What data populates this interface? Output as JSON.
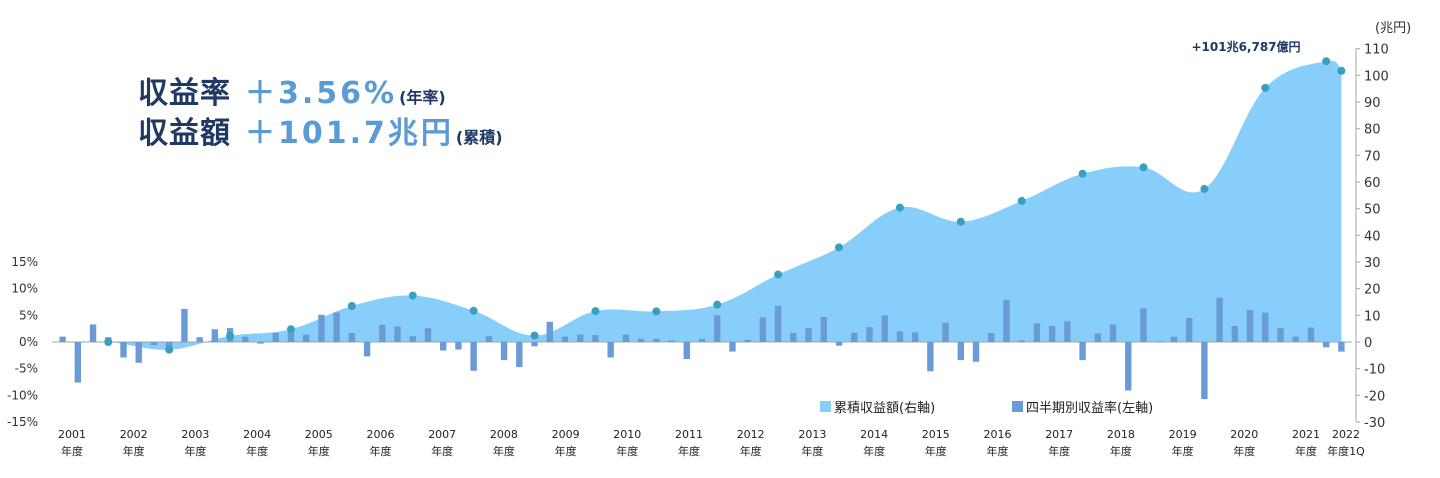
{
  "headline": {
    "rate_label": "収益率",
    "rate_value": "＋3.56%",
    "rate_note": "(年率)",
    "amount_label": "収益額",
    "amount_value": "＋101.7兆円",
    "amount_note": "(累積)"
  },
  "chart_data": {
    "type": "bar+area",
    "left_axis": {
      "ticks": [
        "15%",
        "10%",
        "5%",
        "0%",
        "-5%",
        "-10%",
        "-15%"
      ],
      "ylim": [
        -15,
        15
      ]
    },
    "right_axis": {
      "unit_label": "(兆円)",
      "ticks": [
        "110",
        "100",
        "90",
        "80",
        "70",
        "60",
        "50",
        "40",
        "30",
        "20",
        "10",
        "0",
        "-10",
        "-20",
        "-30"
      ],
      "ylim": [
        -30,
        110
      ]
    },
    "year_labels": [
      "2001",
      "2002",
      "2003",
      "2004",
      "2005",
      "2006",
      "2007",
      "2008",
      "2009",
      "2010",
      "2011",
      "2012",
      "2013",
      "2014",
      "2015",
      "2016",
      "2017",
      "2018",
      "2019",
      "2020",
      "2021",
      "2022"
    ],
    "fy_suffix": "年度",
    "last_suffix": "年度1Q",
    "legend": [
      {
        "name": "累積収益額(右軸)",
        "color": "#87cefa"
      },
      {
        "name": "四半期別収益率(左軸)",
        "color": "#6b9bd6"
      }
    ],
    "annotation": "+101兆6,787億円",
    "area_color": "#87cefa",
    "bar_color": "#6b9bd6",
    "marker_color": "#3a9fbf",
    "quarterly_return_pct": [
      1.0,
      -7.6,
      3.3,
      0.9,
      -2.9,
      -3.9,
      -0.6,
      -1.0,
      6.2,
      0.9,
      2.4,
      2.6,
      1.0,
      -0.3,
      1.7,
      1.8,
      1.4,
      5.1,
      5.5,
      1.7,
      -2.7,
      3.2,
      2.9,
      1.1,
      2.6,
      -1.6,
      -1.4,
      -5.4,
      1.1,
      -3.4,
      -4.7,
      -0.8,
      3.8,
      1.0,
      1.4,
      1.3,
      -2.9,
      1.4,
      0.6,
      0.6,
      0.3,
      -3.2,
      0.6,
      5.0,
      -1.8,
      0.4,
      4.6,
      6.8,
      1.7,
      2.6,
      4.7,
      -0.7,
      1.7,
      2.8,
      5.0,
      2.0,
      1.8,
      -5.5,
      3.6,
      -3.4,
      -3.7,
      1.7,
      7.9,
      0.3,
      3.5,
      3.0,
      3.9,
      -3.4,
      1.6,
      3.3,
      -9.1,
      6.3,
      0.1,
      1.0,
      4.5,
      -10.7,
      8.3,
      3.0,
      6.0,
      5.5,
      2.6,
      1.0,
      2.7,
      -1.0,
      -1.8
    ],
    "cumulative_fy_end_trillion_yen": {
      "x": [
        "2001",
        "2002",
        "2003",
        "2004",
        "2005",
        "2006",
        "2007",
        "2008",
        "2009",
        "2010",
        "2011",
        "2012",
        "2013",
        "2014",
        "2015",
        "2016",
        "2017",
        "2018",
        "2019",
        "2020",
        "2021",
        "2022 1Q"
      ],
      "values": [
        -0.0,
        -2.9,
        2.3,
        4.8,
        13.5,
        17.4,
        11.7,
        2.4,
        11.6,
        11.5,
        14.0,
        25.3,
        35.5,
        50.4,
        45.1,
        52.9,
        63.1,
        65.5,
        57.4,
        95.3,
        105.3,
        101.7
      ]
    }
  }
}
